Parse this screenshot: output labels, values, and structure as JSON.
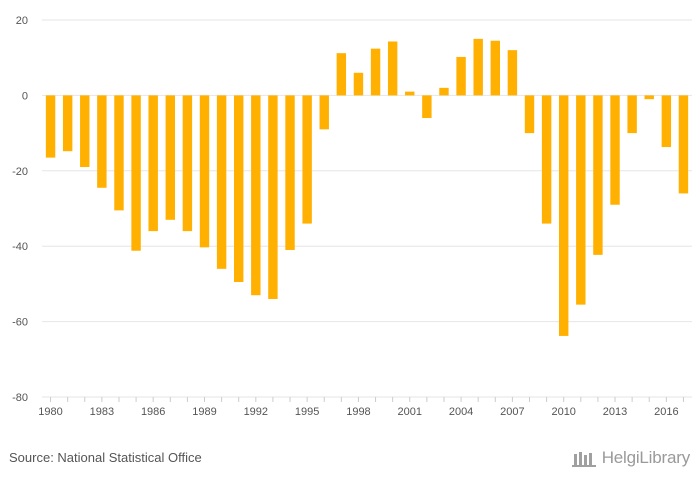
{
  "chart_data": {
    "type": "bar",
    "title": "",
    "xlabel": "",
    "ylabel": "",
    "ylim": [
      -80,
      20
    ],
    "yticks": [
      20,
      0,
      -20,
      -40,
      -60,
      -80
    ],
    "categories": [
      "1980",
      "1981",
      "1982",
      "1983",
      "1984",
      "1985",
      "1986",
      "1987",
      "1988",
      "1989",
      "1990",
      "1991",
      "1992",
      "1993",
      "1994",
      "1995",
      "1996",
      "1997",
      "1998",
      "1999",
      "2000",
      "2001",
      "2002",
      "2003",
      "2004",
      "2005",
      "2006",
      "2007",
      "2008",
      "2009",
      "2010",
      "2011",
      "2012",
      "2013",
      "2014",
      "2015",
      "2016",
      "2017"
    ],
    "xtick_labels": [
      "1980",
      "1983",
      "1986",
      "1989",
      "1992",
      "1995",
      "1998",
      "2001",
      "2004",
      "2007",
      "2010",
      "2013",
      "2016"
    ],
    "values": [
      -16.5,
      -14.8,
      -19.0,
      -24.5,
      -30.5,
      -41.2,
      -36.0,
      -33.0,
      -36.0,
      -40.3,
      -46.0,
      -49.5,
      -53.0,
      -54.0,
      -41.0,
      -34.0,
      -9.0,
      11.2,
      6.0,
      12.4,
      14.3,
      1.0,
      -6.0,
      2.0,
      10.2,
      15.0,
      14.5,
      12.0,
      -10.0,
      -34.0,
      -63.8,
      -55.5,
      -42.3,
      -29.0,
      -10.0,
      -1.0,
      -13.7,
      -26.0
    ],
    "bar_color": "#FFB000",
    "grid": true
  },
  "footer": {
    "source_text": "Source: National Statistical Office",
    "logo_text": "HelgiLibrary"
  }
}
